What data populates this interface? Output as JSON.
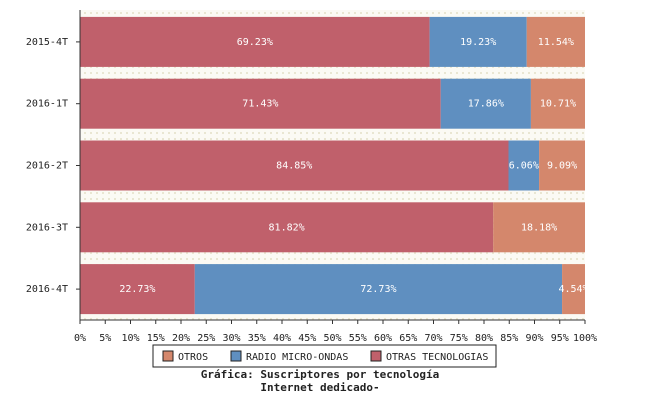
{
  "chart_data": {
    "type": "stacked_barh",
    "title": [
      "Gráfica: Suscriptores por tecnología",
      "Internet dedicado-"
    ],
    "categories": [
      "2015-4T",
      "2016-1T",
      "2016-2T",
      "2016-3T",
      "2016-4T"
    ],
    "series": [
      {
        "name": "OTRAS TECNOLOGIAS",
        "color": "#c0606b",
        "values": [
          69.23,
          71.43,
          84.85,
          81.82,
          22.73
        ],
        "value_labels": [
          "69.23%",
          "71.43%",
          "84.85%",
          "81.82%",
          "22.73%"
        ]
      },
      {
        "name": "RADIO MICRO-ONDAS",
        "color": "#5f8fc0",
        "values": [
          19.23,
          17.86,
          6.06,
          null,
          72.73
        ],
        "value_labels": [
          "19.23%",
          "17.86%",
          "6.06%",
          null,
          "72.73%"
        ]
      },
      {
        "name": "OTROS",
        "color": "#d4876c",
        "values": [
          11.54,
          10.71,
          9.09,
          18.18,
          4.54
        ],
        "value_labels": [
          "11.54%",
          "10.71%",
          "9.09%",
          "18.18%",
          "4.54%"
        ]
      }
    ],
    "xlim": [
      0,
      100
    ],
    "xticks": [
      {
        "value": 0,
        "label": "0%"
      },
      {
        "value": 5,
        "label": "5%"
      },
      {
        "value": 10,
        "label": "10%"
      },
      {
        "value": 15,
        "label": "15%"
      },
      {
        "value": 20,
        "label": "20%"
      },
      {
        "value": 25,
        "label": "25%"
      },
      {
        "value": 30,
        "label": "30%"
      },
      {
        "value": 35,
        "label": "35%"
      },
      {
        "value": 40,
        "label": "40%"
      },
      {
        "value": 45,
        "label": "45%"
      },
      {
        "value": 50,
        "label": "50%"
      },
      {
        "value": 55,
        "label": "55%"
      },
      {
        "value": 60,
        "label": "60%"
      },
      {
        "value": 65,
        "label": "65%"
      },
      {
        "value": 70,
        "label": "70%"
      },
      {
        "value": 75,
        "label": "75%"
      },
      {
        "value": 80,
        "label": "80%"
      },
      {
        "value": 85,
        "label": "85%"
      },
      {
        "value": 90,
        "label": "90%"
      },
      {
        "value": 95,
        "label": "95%"
      },
      {
        "value": 100,
        "label": "100%"
      }
    ]
  }
}
